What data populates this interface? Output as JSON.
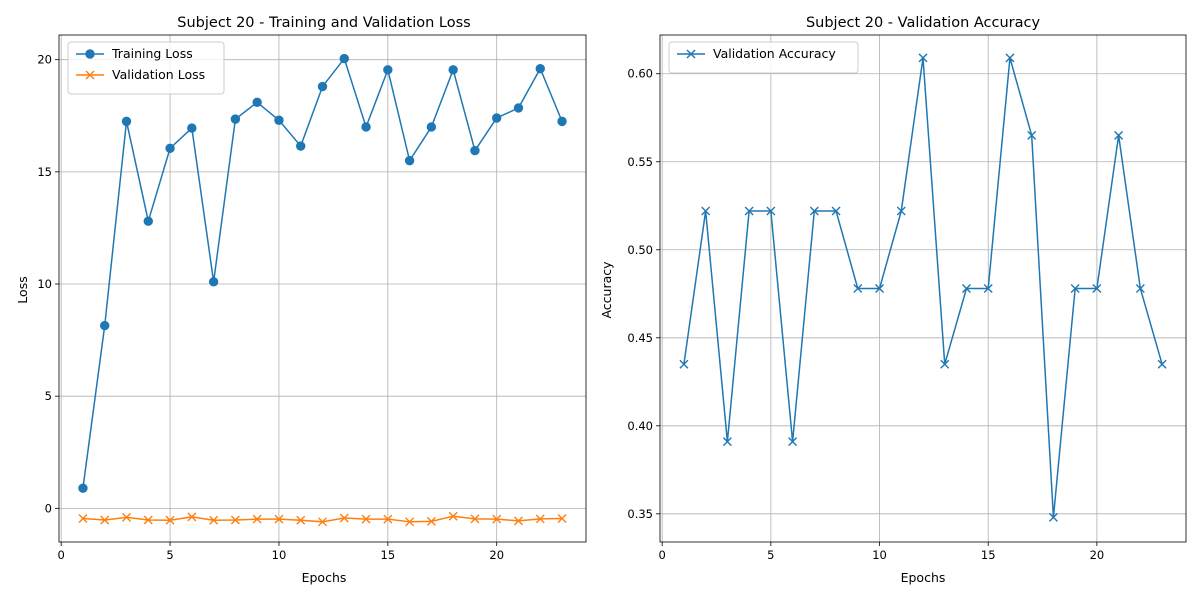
{
  "chart_data": [
    {
      "type": "line",
      "title": "Subject 20 - Training and Validation Loss",
      "xlabel": "Epochs",
      "ylabel": "Loss",
      "xlim": [
        -0.1,
        24.1
      ],
      "ylim": [
        -1.5,
        21.1
      ],
      "xticks": [
        0,
        5,
        10,
        15,
        20
      ],
      "yticks": [
        0,
        5,
        10,
        15,
        20
      ],
      "grid": true,
      "legend": "upper left",
      "x": [
        1,
        2,
        3,
        4,
        5,
        6,
        7,
        8,
        9,
        10,
        11,
        12,
        13,
        14,
        15,
        16,
        17,
        18,
        19,
        20,
        21,
        22,
        23
      ],
      "series": [
        {
          "name": "Training Loss",
          "color": "#1f77b4",
          "marker": "circle",
          "values": [
            0.9,
            8.15,
            17.25,
            12.8,
            16.05,
            16.95,
            10.1,
            17.35,
            18.1,
            17.3,
            16.15,
            18.8,
            20.05,
            17.0,
            19.55,
            15.5,
            17.0,
            19.55,
            15.95,
            17.4,
            17.85,
            19.6,
            17.25
          ]
        },
        {
          "name": "Validation Loss",
          "color": "#ff7f0e",
          "marker": "x",
          "values": [
            -0.45,
            -0.52,
            -0.4,
            -0.52,
            -0.53,
            -0.38,
            -0.53,
            -0.52,
            -0.48,
            -0.48,
            -0.53,
            -0.6,
            -0.43,
            -0.48,
            -0.48,
            -0.6,
            -0.58,
            -0.35,
            -0.47,
            -0.48,
            -0.56,
            -0.47,
            -0.45
          ]
        }
      ]
    },
    {
      "type": "line",
      "title": "Subject 20 - Validation Accuracy",
      "xlabel": "Epochs",
      "ylabel": "Accuracy",
      "xlim": [
        -0.1,
        24.1
      ],
      "ylim": [
        0.334,
        0.622
      ],
      "xticks": [
        0,
        5,
        10,
        15,
        20
      ],
      "yticks": [
        0.35,
        0.4,
        0.45,
        0.5,
        0.55,
        0.6
      ],
      "ytick_labels": [
        "0.35",
        "0.40",
        "0.45",
        "0.50",
        "0.55",
        "0.60"
      ],
      "grid": true,
      "legend": "upper left",
      "x": [
        1,
        2,
        3,
        4,
        5,
        6,
        7,
        8,
        9,
        10,
        11,
        12,
        13,
        14,
        15,
        16,
        17,
        18,
        19,
        20,
        21,
        22,
        23
      ],
      "series": [
        {
          "name": "Validation Accuracy",
          "color": "#1f77b4",
          "marker": "x",
          "values": [
            0.435,
            0.522,
            0.391,
            0.522,
            0.522,
            0.391,
            0.522,
            0.522,
            0.478,
            0.478,
            0.522,
            0.609,
            0.435,
            0.478,
            0.478,
            0.609,
            0.565,
            0.348,
            0.478,
            0.478,
            0.565,
            0.478,
            0.435
          ]
        }
      ]
    }
  ]
}
